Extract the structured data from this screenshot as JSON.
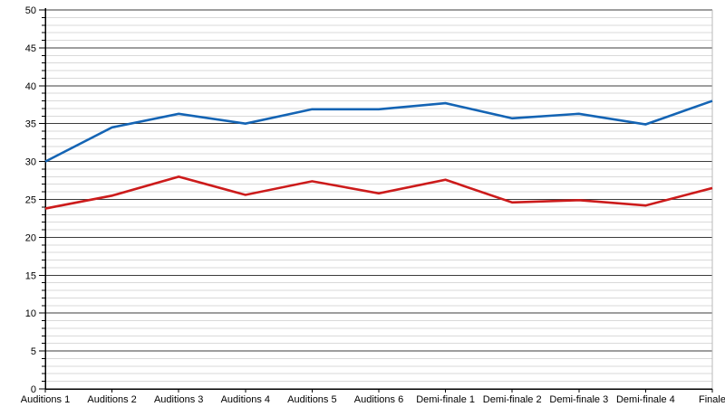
{
  "chart_data": {
    "type": "line",
    "title": "",
    "xlabel": "",
    "ylabel": "",
    "categories": [
      "Auditions 1",
      "Auditions 2",
      "Auditions 3",
      "Auditions 4",
      "Auditions 5",
      "Auditions 6",
      "Demi-finale 1",
      "Demi-finale 2",
      "Demi-finale 3",
      "Demi-finale 4",
      "Finale"
    ],
    "series": [
      {
        "name": "blue-line",
        "color": "#1464b4",
        "values": [
          30,
          34.5,
          36.3,
          35,
          36.9,
          36.9,
          37.7,
          35.7,
          36.3,
          34.9,
          38
        ]
      },
      {
        "name": "red-line",
        "color": "#cc1b1b",
        "values": [
          23.8,
          25.5,
          28,
          25.6,
          27.4,
          25.8,
          27.6,
          24.6,
          24.9,
          24.2,
          26.5
        ]
      }
    ],
    "ylim": [
      0,
      50
    ],
    "y_major_step": 5,
    "y_minor_step": 1,
    "y_tick_labels": [
      "0",
      "5",
      "10",
      "15",
      "20",
      "25",
      "30",
      "35",
      "40",
      "45",
      "50"
    ],
    "grid": "horizontal major+minor, full width",
    "legend": "none",
    "colors": {
      "background": "#ffffff",
      "axis": "#000000",
      "major_gridline": "#3c3c3c",
      "minor_gridline": "#d9d9d9",
      "plot_right_border": "#b9b9b9",
      "tick": "#000000",
      "label_text": "#000000"
    }
  }
}
